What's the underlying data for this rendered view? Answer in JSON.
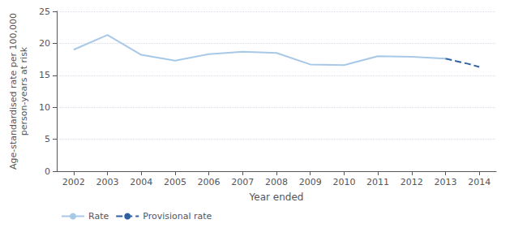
{
  "chart_data": {
    "type": "line",
    "xlabel": "Year ended",
    "ylabel": "Age-standardised rate per 100,000\nperson-years at risk",
    "series": [
      {
        "name": "Rate",
        "color": "#a8c8e8",
        "line_style": "solid",
        "x": [
          2002,
          2003,
          2004,
          2005,
          2006,
          2007,
          2008,
          2009,
          2010,
          2011,
          2012,
          2013
        ],
        "values": [
          19.0,
          21.3,
          18.2,
          17.3,
          18.3,
          18.7,
          18.5,
          16.7,
          16.6,
          18.0,
          17.9,
          17.6
        ]
      },
      {
        "name": "Provisional rate",
        "color": "#3060a0",
        "line_style": "dashed",
        "x": [
          2013,
          2013.33,
          2013.67,
          2014
        ],
        "values": [
          17.6,
          17.2,
          16.8,
          16.3
        ]
      }
    ],
    "xlim": [
      2001.5,
      2014.5
    ],
    "xticks": [
      2002,
      2003,
      2004,
      2005,
      2006,
      2007,
      2008,
      2009,
      2010,
      2011,
      2012,
      2013,
      2014
    ],
    "ylim": [
      0,
      25
    ],
    "yticks": [
      0,
      5,
      10,
      15,
      20,
      25
    ],
    "grid": true,
    "legend": "bottom"
  }
}
